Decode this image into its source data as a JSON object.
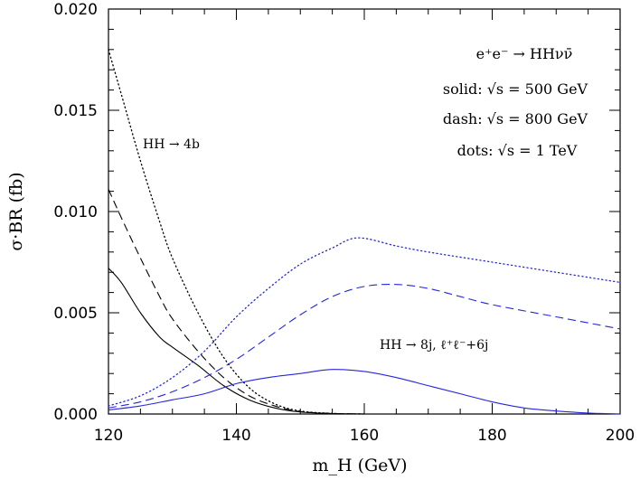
{
  "chart_data": {
    "type": "line",
    "title": "",
    "xlabel": "m_H (GeV)",
    "ylabel": "σ·BR (fb)",
    "xlim": [
      120,
      200
    ],
    "ylim": [
      0,
      0.02
    ],
    "x_ticks": [
      "120",
      "140",
      "160",
      "180",
      "200"
    ],
    "y_ticks": [
      "0.000",
      "0.005",
      "0.010",
      "0.015",
      "0.020"
    ],
    "grid": false,
    "legend": "none",
    "colors": {
      "hh4b": "#000000",
      "hh8j": "#2525e0"
    },
    "annotations": {
      "process": "e⁺e⁻ → HHνν̄",
      "solid": "solid: √s = 500 GeV",
      "dash": "dash: √s = 800 GeV",
      "dots": "dots: √s = 1 TeV",
      "hh4b": "HH → 4b",
      "hh8j": "HH → 8j, ℓ⁺ℓ⁻+6j"
    },
    "series": [
      {
        "group": "hh4b",
        "style": "solid",
        "x": [
          120,
          122,
          125,
          128,
          130,
          134,
          138,
          142,
          146,
          150,
          155,
          160
        ],
        "y": [
          0.0072,
          0.0065,
          0.005,
          0.0038,
          0.0033,
          0.0024,
          0.0014,
          0.0007,
          0.0003,
          0.0001,
          2e-05,
          0.0
        ]
      },
      {
        "group": "hh4b",
        "style": "dash",
        "x": [
          120,
          122,
          125,
          128,
          130,
          134,
          138,
          142,
          146,
          150,
          155,
          160
        ],
        "y": [
          0.0111,
          0.0097,
          0.0077,
          0.0058,
          0.0047,
          0.0031,
          0.0018,
          0.0009,
          0.0004,
          0.00012,
          3e-05,
          0.0
        ]
      },
      {
        "group": "hh4b",
        "style": "dots",
        "x": [
          120,
          122,
          125,
          128,
          130,
          134,
          138,
          142,
          146,
          150,
          155,
          160
        ],
        "y": [
          0.018,
          0.0158,
          0.0125,
          0.0095,
          0.0077,
          0.005,
          0.0028,
          0.0013,
          0.0005,
          0.00015,
          3e-05,
          0.0
        ]
      },
      {
        "group": "hh8j",
        "style": "solid",
        "x": [
          120,
          125,
          130,
          135,
          140,
          145,
          150,
          155,
          160,
          165,
          170,
          175,
          180,
          185,
          190,
          195,
          200
        ],
        "y": [
          0.0002,
          0.0004,
          0.0007,
          0.001,
          0.0015,
          0.0018,
          0.002,
          0.0022,
          0.0021,
          0.0018,
          0.0014,
          0.001,
          0.0006,
          0.0003,
          0.00015,
          5e-05,
          0.0
        ]
      },
      {
        "group": "hh8j",
        "style": "dash",
        "x": [
          120,
          125,
          130,
          135,
          140,
          145,
          150,
          155,
          160,
          165,
          170,
          175,
          180,
          190,
          200
        ],
        "y": [
          0.0003,
          0.0006,
          0.0011,
          0.0018,
          0.0027,
          0.0038,
          0.0049,
          0.0058,
          0.0063,
          0.0064,
          0.0062,
          0.0058,
          0.0054,
          0.0048,
          0.0042
        ]
      },
      {
        "group": "hh8j",
        "style": "dots",
        "x": [
          120,
          125,
          130,
          135,
          140,
          145,
          150,
          155,
          159,
          165,
          170,
          180,
          190,
          200
        ],
        "y": [
          0.0004,
          0.0009,
          0.0018,
          0.0031,
          0.0048,
          0.0062,
          0.0074,
          0.0082,
          0.0087,
          0.0083,
          0.008,
          0.0075,
          0.007,
          0.0065
        ]
      }
    ]
  }
}
